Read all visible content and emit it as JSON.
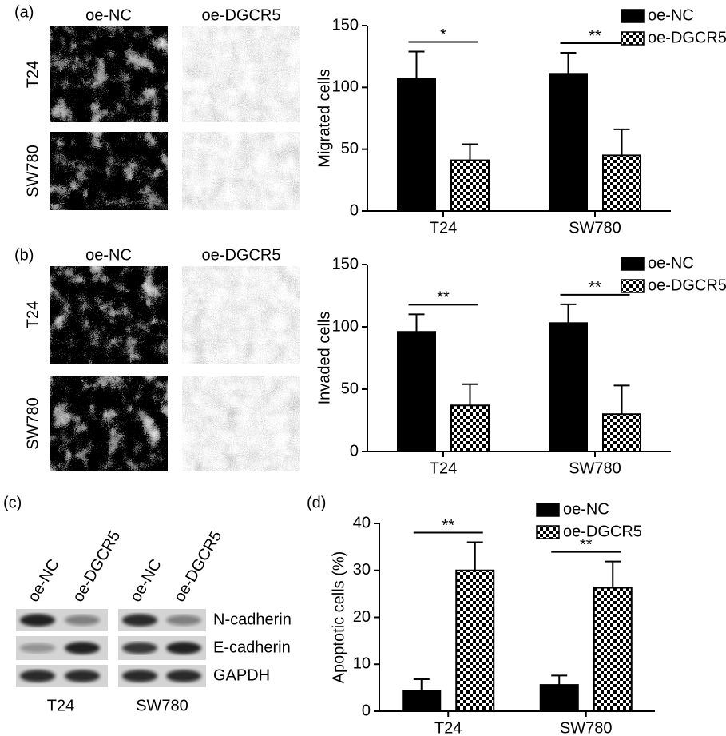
{
  "panel_labels": [
    "(a)",
    "(b)",
    "(c)",
    "(d)"
  ],
  "micrographs": [
    {
      "columns": [
        "oe-NC",
        "oe-DGCR5"
      ],
      "rows": [
        "T24",
        "SW780"
      ]
    },
    {
      "columns": [
        "oe-NC",
        "oe-DGCR5"
      ],
      "rows": [
        "T24",
        "SW780"
      ]
    }
  ],
  "western_blot": {
    "lanes": [
      "oe-NC",
      "oe-DGCR5",
      "oe-NC",
      "oe-DGCR5"
    ],
    "proteins": [
      "N-cadherin",
      "E-cadherin",
      "GAPDH"
    ],
    "cell_lines": [
      "T24",
      "SW780"
    ]
  },
  "chart_data": [
    {
      "type": "bar",
      "y_label": "Migrated cells",
      "categories": [
        "T24",
        "SW780"
      ],
      "series": [
        {
          "name": "oe-NC",
          "color": "#000000",
          "values": [
            107,
            111
          ],
          "errors": [
            22,
            17
          ]
        },
        {
          "name": "oe-DGCR5",
          "color": "#000000",
          "pattern": "checker",
          "values": [
            41,
            45
          ],
          "errors": [
            13,
            21
          ]
        }
      ],
      "significance": [
        "*",
        "**"
      ],
      "ylim": [
        0,
        150
      ],
      "yticks": [
        0,
        50,
        100,
        150
      ],
      "legend": "upper right"
    },
    {
      "type": "bar",
      "y_label": "Invaded cells",
      "categories": [
        "T24",
        "SW780"
      ],
      "series": [
        {
          "name": "oe-NC",
          "color": "#000000",
          "values": [
            96,
            103
          ],
          "errors": [
            14,
            15
          ]
        },
        {
          "name": "oe-DGCR5",
          "color": "#000000",
          "pattern": "checker",
          "values": [
            37,
            30
          ],
          "errors": [
            17,
            23
          ]
        }
      ],
      "significance": [
        "**",
        "**"
      ],
      "ylim": [
        0,
        150
      ],
      "yticks": [
        0,
        50,
        100,
        150
      ],
      "legend": "upper right"
    },
    {
      "type": "bar",
      "y_label": "Apoptotic cells (%)",
      "categories": [
        "T24",
        "SW780"
      ],
      "series": [
        {
          "name": "oe-NC",
          "color": "#000000",
          "values": [
            4.3,
            5.6
          ],
          "errors": [
            2.5,
            2
          ]
        },
        {
          "name": "oe-DGCR5",
          "color": "#000000",
          "pattern": "checker",
          "values": [
            30,
            26.3
          ],
          "errors": [
            6,
            5.6
          ]
        }
      ],
      "significance": [
        "**",
        "**"
      ],
      "ylim": [
        0,
        40
      ],
      "yticks": [
        0,
        10,
        20,
        30,
        40
      ],
      "legend": "upper center"
    }
  ]
}
